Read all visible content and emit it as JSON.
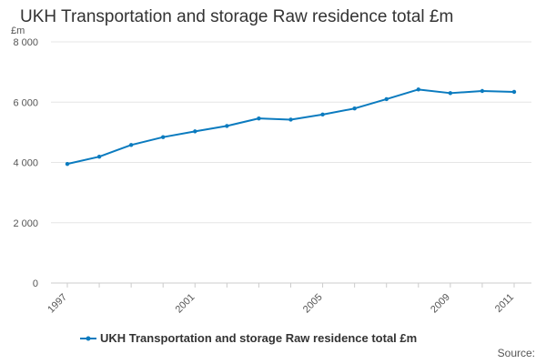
{
  "title": "UKH Transportation and storage Raw residence total £m",
  "source_label": "Source:",
  "colors": {
    "series": "#0b7bbf",
    "grid": "#e6e6e6",
    "axis": "#cccccc"
  },
  "chart_data": {
    "type": "line",
    "title": "UKH Transportation and storage Raw residence total £m",
    "ylabel": "£m",
    "xlabel": "",
    "ylim": [
      0,
      8000
    ],
    "yticks": [
      0,
      2000,
      4000,
      6000,
      8000
    ],
    "ytick_labels": [
      "0",
      "2 000",
      "4 000",
      "6 000",
      "8 000"
    ],
    "xtick_labels": [
      "1997",
      "2001",
      "2005",
      "2009",
      "2011"
    ],
    "grid": true,
    "legend": "bottom",
    "x": [
      1997,
      1998,
      1999,
      2000,
      2001,
      2002,
      2003,
      2004,
      2005,
      2006,
      2007,
      2008,
      2009,
      2010,
      2011
    ],
    "series": [
      {
        "name": "UKH Transportation and storage Raw residence total £m",
        "values": [
          3950,
          4190,
          4580,
          4840,
          5030,
          5210,
          5460,
          5420,
          5590,
          5790,
          6100,
          6420,
          6300,
          6370,
          6340
        ]
      }
    ]
  }
}
